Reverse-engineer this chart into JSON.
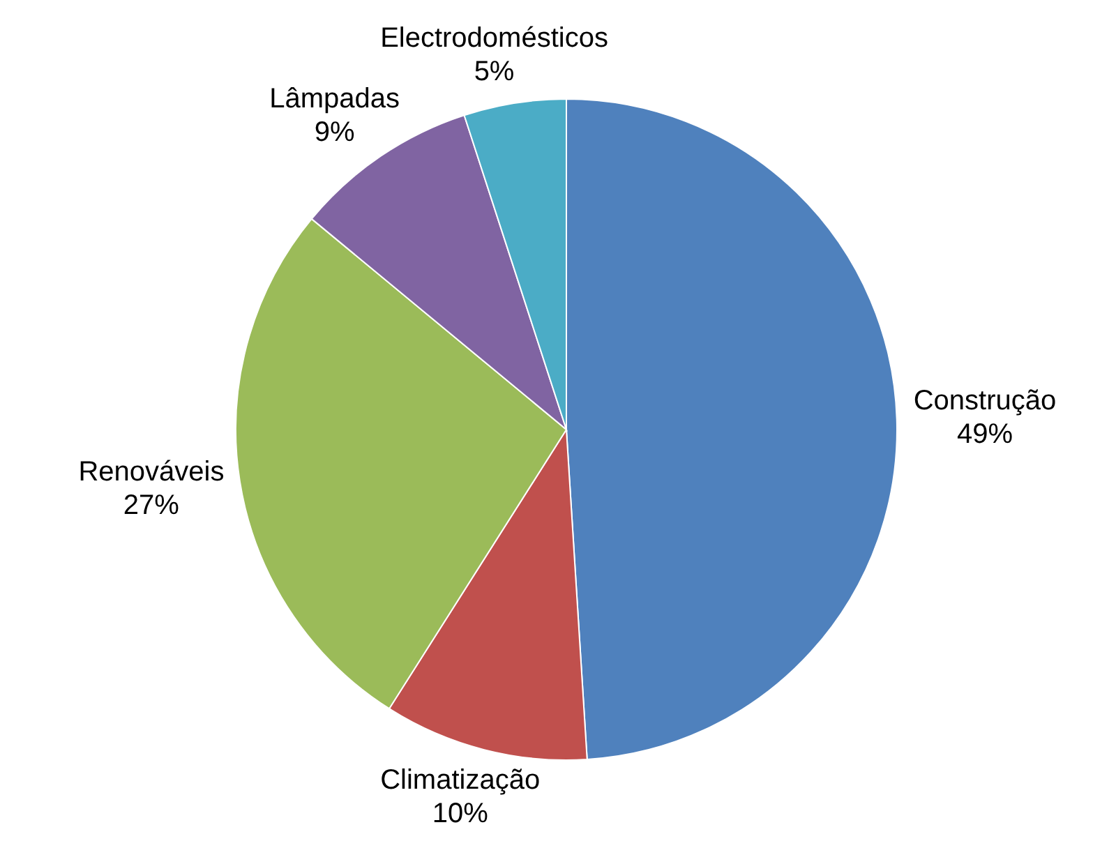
{
  "chart_data": {
    "type": "pie",
    "categories": [
      "Construção",
      "Climatização",
      "Renováveis",
      "Lâmpadas",
      "Electrodomésticos"
    ],
    "values": [
      49,
      10,
      27,
      9,
      5
    ],
    "colors": [
      "#4f81bd",
      "#c0504d",
      "#9bbb59",
      "#8064a2",
      "#4bacc6"
    ],
    "value_labels": [
      "49%",
      "10%",
      "27%",
      "9%",
      "5%"
    ]
  }
}
